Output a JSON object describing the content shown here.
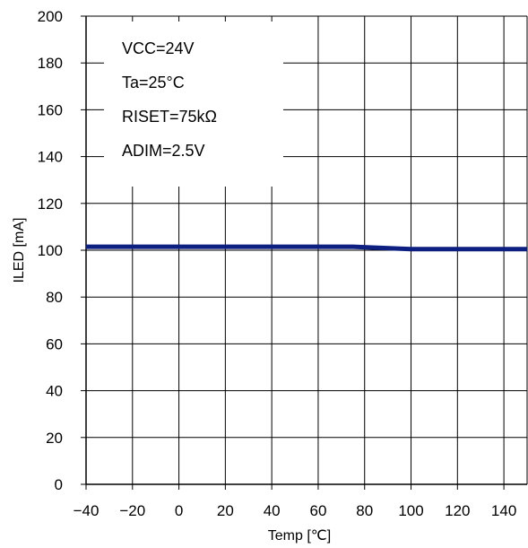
{
  "chart_data": {
    "type": "line",
    "xlabel": "Temp [℃]",
    "ylabel": "ILED [mA]",
    "xlim": [
      -40,
      150
    ],
    "ylim": [
      0,
      200
    ],
    "x_ticks": [
      "−40",
      "−20",
      "0",
      "20",
      "40",
      "60",
      "80",
      "100",
      "120",
      "140"
    ],
    "y_ticks": [
      "0",
      "20",
      "40",
      "60",
      "80",
      "100",
      "120",
      "140",
      "160",
      "180",
      "200"
    ],
    "grid": true,
    "annotations": [
      "VCC=24V",
      "Ta=25°C",
      "RISET=75kΩ",
      "ADIM=2.5V"
    ],
    "series": [
      {
        "color": "#0d1f80",
        "x": [
          -40,
          0,
          40,
          75,
          100,
          125,
          150
        ],
        "y": [
          101.5,
          101.5,
          101.5,
          101.5,
          100.5,
          100.5,
          100.5
        ]
      }
    ]
  }
}
